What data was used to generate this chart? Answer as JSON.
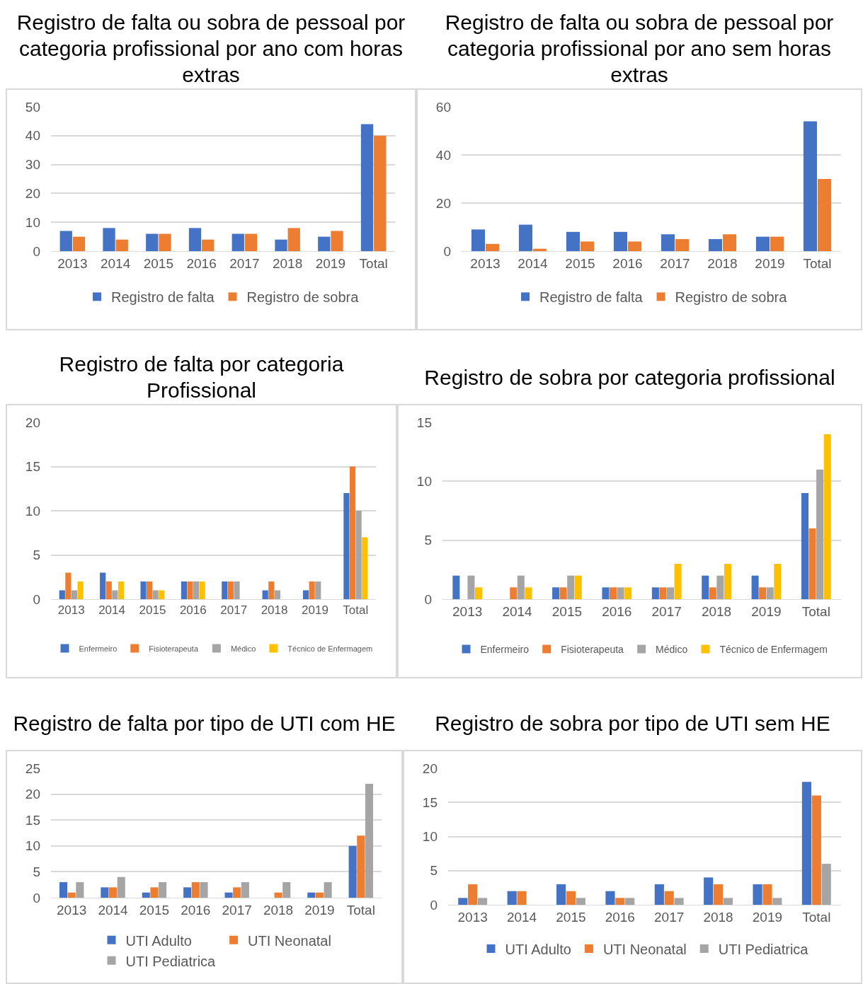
{
  "chart_data": [
    {
      "type": "bar",
      "title": "Registro de falta ou sobra de pessoal por categoria profissional por ano com horas extras",
      "categories": [
        "2013",
        "2014",
        "2015",
        "2016",
        "2017",
        "2018",
        "2019",
        "Total"
      ],
      "series": [
        {
          "name": "Registro de falta",
          "color": "#4472c4",
          "values": [
            7,
            8,
            6,
            8,
            6,
            4,
            5,
            44
          ]
        },
        {
          "name": "Registro de sobra",
          "color": "#ed7d31",
          "values": [
            5,
            4,
            6,
            4,
            6,
            8,
            7,
            40
          ]
        }
      ],
      "ylim": [
        0,
        50
      ],
      "yticks": [
        0,
        10,
        20,
        30,
        40,
        50
      ],
      "grid": "y",
      "legend": "bottom"
    },
    {
      "type": "bar",
      "title": "Registro de falta ou sobra de pessoal por categoria profissional por ano sem horas extras",
      "categories": [
        "2013",
        "2014",
        "2015",
        "2016",
        "2017",
        "2018",
        "2019",
        "Total"
      ],
      "series": [
        {
          "name": "Registro de falta",
          "color": "#4472c4",
          "values": [
            9,
            11,
            8,
            8,
            7,
            5,
            6,
            54
          ]
        },
        {
          "name": "Registro de sobra",
          "color": "#ed7d31",
          "values": [
            3,
            1,
            4,
            4,
            5,
            7,
            6,
            30
          ]
        }
      ],
      "ylim": [
        0,
        60
      ],
      "yticks": [
        0,
        20,
        40,
        60
      ],
      "grid": "y",
      "legend": "bottom"
    },
    {
      "type": "bar",
      "title": "Registro de falta por categoria Profissional",
      "categories": [
        "2013",
        "2014",
        "2015",
        "2016",
        "2017",
        "2018",
        "2019",
        "Total"
      ],
      "series": [
        {
          "name": "Enfermeiro",
          "color": "#4472c4",
          "values": [
            1,
            3,
            2,
            2,
            2,
            1,
            1,
            12
          ]
        },
        {
          "name": "Fisioterapeuta",
          "color": "#ed7d31",
          "values": [
            3,
            2,
            2,
            2,
            2,
            2,
            2,
            15
          ]
        },
        {
          "name": "Médico",
          "color": "#a5a5a5",
          "values": [
            1,
            1,
            1,
            2,
            2,
            1,
            2,
            10
          ]
        },
        {
          "name": "Técnico de Enfermagem",
          "color": "#ffc000",
          "values": [
            2,
            2,
            1,
            2,
            0,
            0,
            0,
            7
          ]
        }
      ],
      "ylim": [
        0,
        20
      ],
      "yticks": [
        0,
        5,
        10,
        15,
        20
      ],
      "grid": "y",
      "legend": "bottom"
    },
    {
      "type": "bar",
      "title": "Registro de sobra por categoria profissional",
      "categories": [
        "2013",
        "2014",
        "2015",
        "2016",
        "2017",
        "2018",
        "2019",
        "Total"
      ],
      "series": [
        {
          "name": "Enfermeiro",
          "color": "#4472c4",
          "values": [
            2,
            0,
            1,
            1,
            1,
            2,
            2,
            9
          ]
        },
        {
          "name": "Fisioterapeuta",
          "color": "#ed7d31",
          "values": [
            0,
            1,
            1,
            1,
            1,
            1,
            1,
            6
          ]
        },
        {
          "name": "Médico",
          "color": "#a5a5a5",
          "values": [
            2,
            2,
            2,
            1,
            1,
            2,
            1,
            11
          ]
        },
        {
          "name": "Técnico de Enfermagem",
          "color": "#ffc000",
          "values": [
            1,
            1,
            2,
            1,
            3,
            3,
            3,
            14
          ]
        }
      ],
      "ylim": [
        0,
        15
      ],
      "yticks": [
        0,
        5,
        10,
        15
      ],
      "grid": "y",
      "legend": "bottom"
    },
    {
      "type": "bar",
      "title": "Registro de falta por tipo de UTI com HE",
      "categories": [
        "2013",
        "2014",
        "2015",
        "2016",
        "2017",
        "2018",
        "2019",
        "Total"
      ],
      "series": [
        {
          "name": "UTI Adulto",
          "color": "#4472c4",
          "values": [
            3,
            2,
            1,
            2,
            1,
            0,
            1,
            10
          ]
        },
        {
          "name": "UTI Neonatal",
          "color": "#ed7d31",
          "values": [
            1,
            2,
            2,
            3,
            2,
            1,
            1,
            12
          ]
        },
        {
          "name": "UTI Pediatrica",
          "color": "#a5a5a5",
          "values": [
            3,
            4,
            3,
            3,
            3,
            3,
            3,
            22
          ]
        }
      ],
      "ylim": [
        0,
        25
      ],
      "yticks": [
        0,
        5,
        10,
        15,
        20,
        25
      ],
      "grid": "y",
      "legend": "bottom"
    },
    {
      "type": "bar",
      "title": "Registro de sobra por tipo de UTI sem HE",
      "categories": [
        "2013",
        "2014",
        "2015",
        "2016",
        "2017",
        "2018",
        "2019",
        "Total"
      ],
      "series": [
        {
          "name": "UTI Adulto",
          "color": "#4472c4",
          "values": [
            1,
            2,
            3,
            2,
            3,
            4,
            3,
            18
          ]
        },
        {
          "name": "UTI Neonatal",
          "color": "#ed7d31",
          "values": [
            3,
            2,
            2,
            1,
            2,
            3,
            3,
            16
          ]
        },
        {
          "name": "UTI Pediatrica",
          "color": "#a5a5a5",
          "values": [
            1,
            0,
            1,
            1,
            1,
            1,
            1,
            6
          ]
        }
      ],
      "ylim": [
        0,
        20
      ],
      "yticks": [
        0,
        5,
        10,
        15,
        20
      ],
      "grid": "y",
      "legend": "bottom"
    }
  ]
}
